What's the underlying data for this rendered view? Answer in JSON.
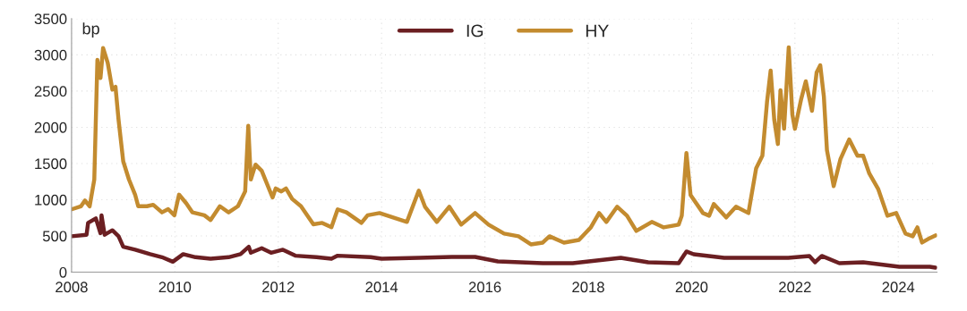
{
  "chart_data": {
    "type": "line",
    "ylabel": "bp",
    "xlim": [
      2008,
      2024.75
    ],
    "ylim": [
      0,
      3500
    ],
    "xticks": [
      2008,
      2010,
      2012,
      2014,
      2016,
      2018,
      2020,
      2022,
      2024
    ],
    "yticks": [
      0,
      500,
      1000,
      1500,
      2000,
      2500,
      3000,
      3500
    ],
    "grid": true,
    "legend": "top",
    "line_style": "solid",
    "marker": "none",
    "series": [
      {
        "name": "IG",
        "color": "#6b1f22",
        "x": [
          2008.0,
          2008.29,
          2008.32,
          2008.47,
          2008.56,
          2008.58,
          2008.64,
          2008.79,
          2008.91,
          2009.0,
          2009.23,
          2009.52,
          2009.75,
          2009.96,
          2010.16,
          2010.4,
          2010.69,
          2011.04,
          2011.27,
          2011.43,
          2011.47,
          2011.68,
          2011.86,
          2012.09,
          2012.33,
          2012.74,
          2013.03,
          2013.15,
          2013.79,
          2014.0,
          2014.72,
          2015.36,
          2015.81,
          2016.25,
          2017.12,
          2017.7,
          2018.63,
          2019.16,
          2019.75,
          2019.9,
          2020.04,
          2020.63,
          2021.0,
          2021.87,
          2022.28,
          2022.39,
          2022.52,
          2022.86,
          2023.32,
          2024.02,
          2024.61,
          2024.72
        ],
        "values": [
          495,
          516,
          680,
          743,
          537,
          784,
          516,
          578,
          495,
          350,
          310,
          248,
          206,
          144,
          248,
          206,
          186,
          206,
          248,
          350,
          268,
          330,
          268,
          310,
          227,
          206,
          186,
          227,
          206,
          186,
          198,
          210,
          210,
          148,
          124,
          124,
          198,
          136,
          124,
          285,
          247,
          198,
          198,
          198,
          223,
          136,
          223,
          124,
          136,
          74,
          74,
          62
        ]
      },
      {
        "name": "HY",
        "color": "#c38b2f",
        "x": [
          2008.0,
          2008.18,
          2008.26,
          2008.35,
          2008.44,
          2008.5,
          2008.56,
          2008.61,
          2008.7,
          2008.79,
          2008.85,
          2008.91,
          2009.0,
          2009.11,
          2009.23,
          2009.29,
          2009.46,
          2009.58,
          2009.75,
          2009.87,
          2009.99,
          2010.08,
          2010.22,
          2010.34,
          2010.57,
          2010.69,
          2010.87,
          2011.04,
          2011.22,
          2011.36,
          2011.42,
          2011.47,
          2011.56,
          2011.68,
          2011.89,
          2011.95,
          2012.06,
          2012.15,
          2012.27,
          2012.44,
          2012.68,
          2012.85,
          2013.03,
          2013.15,
          2013.32,
          2013.61,
          2013.73,
          2013.96,
          2014.49,
          2014.72,
          2014.84,
          2015.07,
          2015.31,
          2015.54,
          2015.81,
          2016.07,
          2016.37,
          2016.65,
          2016.89,
          2017.12,
          2017.25,
          2017.53,
          2017.82,
          2018.05,
          2018.21,
          2018.35,
          2018.56,
          2018.75,
          2018.93,
          2019.23,
          2019.46,
          2019.75,
          2019.81,
          2019.9,
          2019.98,
          2020.22,
          2020.34,
          2020.43,
          2020.67,
          2020.86,
          2021.1,
          2021.25,
          2021.37,
          2021.46,
          2021.53,
          2021.6,
          2021.67,
          2021.72,
          2021.79,
          2021.88,
          2021.95,
          2022.0,
          2022.12,
          2022.21,
          2022.33,
          2022.42,
          2022.49,
          2022.56,
          2022.62,
          2022.75,
          2022.88,
          2023.05,
          2023.21,
          2023.32,
          2023.44,
          2023.61,
          2023.79,
          2023.96,
          2024.14,
          2024.28,
          2024.37,
          2024.46,
          2024.61,
          2024.72
        ],
        "values": [
          867,
          908,
          990,
          908,
          1280,
          2930,
          2680,
          3095,
          2890,
          2520,
          2560,
          2100,
          1530,
          1280,
          1070,
          910,
          910,
          930,
          825,
          870,
          785,
          1070,
          950,
          825,
          785,
          720,
          910,
          825,
          910,
          1115,
          2020,
          1280,
          1485,
          1400,
          1030,
          1155,
          1115,
          1155,
          1010,
          910,
          660,
          680,
          620,
          867,
          825,
          680,
          785,
          816,
          693,
          1126,
          903,
          693,
          903,
          656,
          816,
          656,
          532,
          495,
          383,
          408,
          495,
          408,
          445,
          618,
          816,
          693,
          903,
          779,
          569,
          693,
          618,
          656,
          779,
          1645,
          1064,
          816,
          779,
          940,
          755,
          903,
          816,
          1435,
          1608,
          2350,
          2783,
          2103,
          1769,
          2511,
          1979,
          3105,
          2177,
          1979,
          2387,
          2635,
          2227,
          2759,
          2857,
          2424,
          1682,
          1188,
          1559,
          1831,
          1608,
          1608,
          1361,
          1150,
          779,
          816,
          532,
          495,
          618,
          408,
          470,
          507
        ]
      }
    ]
  }
}
